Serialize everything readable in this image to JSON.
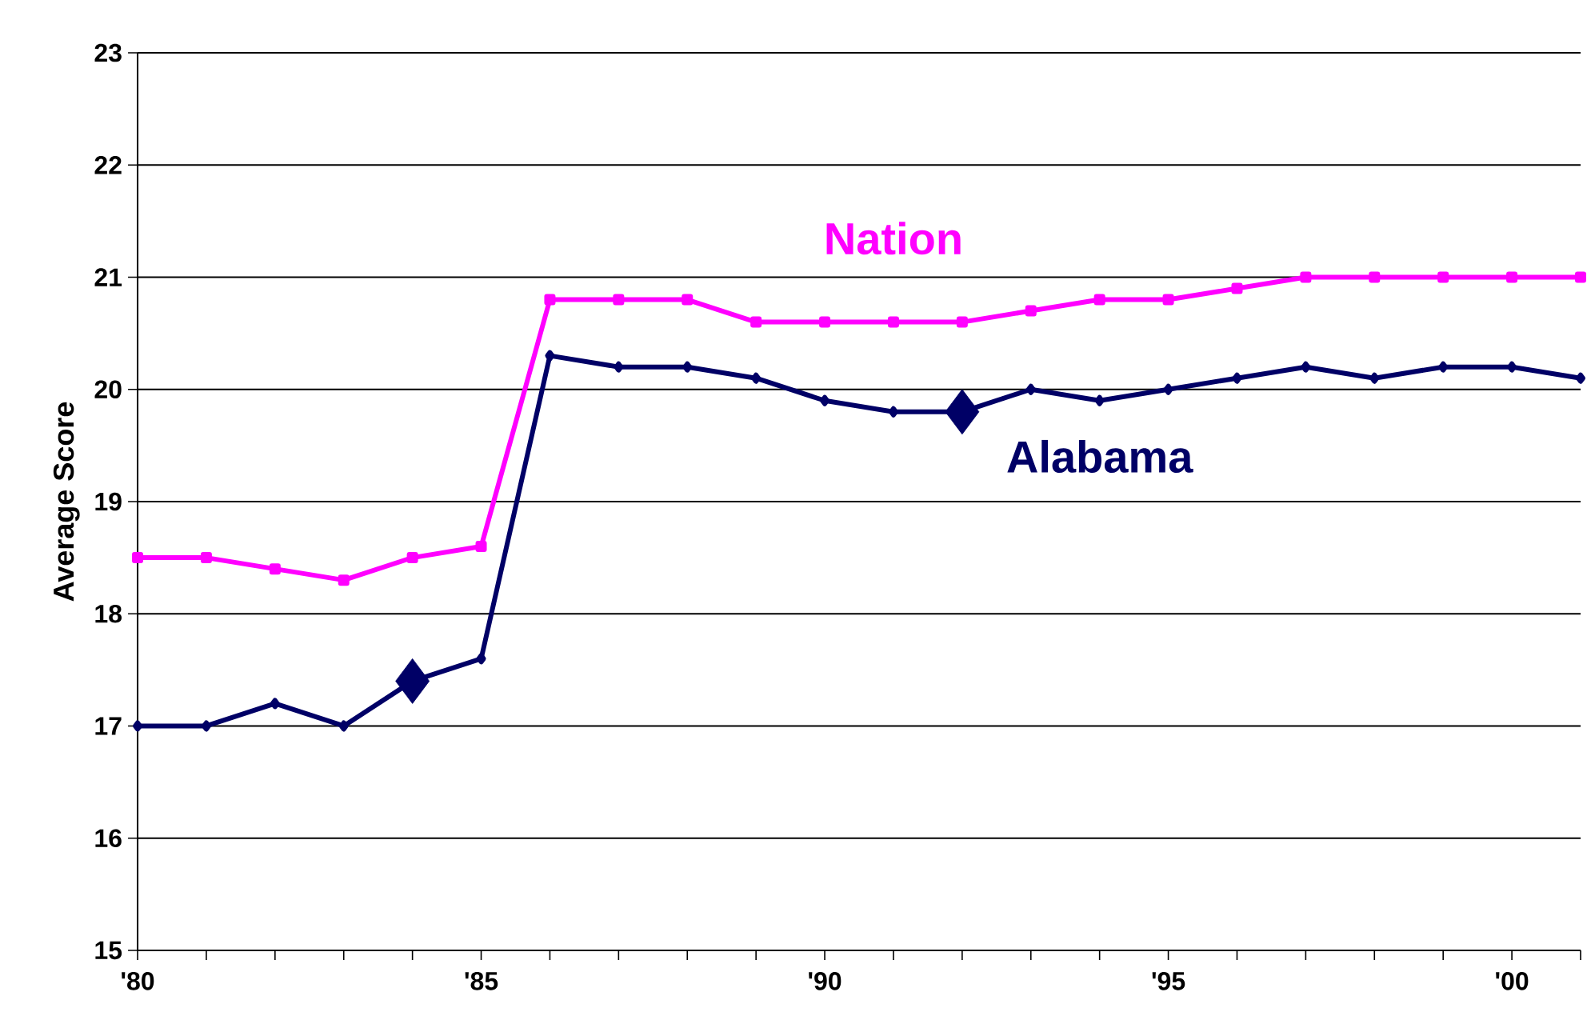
{
  "chart_data": {
    "type": "line",
    "ylabel": "Average Score",
    "x": [
      1980,
      1981,
      1982,
      1983,
      1984,
      1985,
      1986,
      1987,
      1988,
      1989,
      1990,
      1991,
      1992,
      1993,
      1994,
      1995,
      1996,
      1997,
      1998,
      1999,
      2000,
      2001
    ],
    "series": [
      {
        "name": "Nation",
        "color": "#ff00ff",
        "marker": "square",
        "values": [
          18.5,
          18.5,
          18.4,
          18.3,
          18.5,
          18.6,
          20.8,
          20.8,
          20.8,
          20.6,
          20.6,
          20.6,
          20.6,
          20.7,
          20.8,
          20.8,
          20.9,
          21.0,
          21.0,
          21.0,
          21.0,
          21.0
        ]
      },
      {
        "name": "Alabama",
        "color": "#000066",
        "marker": "diamond",
        "values": [
          17.0,
          17.0,
          17.2,
          17.0,
          17.4,
          17.6,
          20.3,
          20.2,
          20.2,
          20.1,
          19.9,
          19.8,
          19.8,
          20.0,
          19.9,
          20.0,
          20.1,
          20.2,
          20.1,
          20.2,
          20.2,
          20.1
        ]
      },
      {
        "type": "scatter",
        "color": "#000066",
        "marker": "diamond",
        "x": [
          1984,
          1992
        ],
        "values": [
          17.4,
          19.8
        ]
      }
    ],
    "xlim": [
      1980,
      2001
    ],
    "xticks": [
      {
        "value": 1980,
        "label": "'80"
      },
      {
        "value": 1981,
        "label": null
      },
      {
        "value": 1982,
        "label": null
      },
      {
        "value": 1983,
        "label": null
      },
      {
        "value": 1984,
        "label": null
      },
      {
        "value": 1985,
        "label": "'85"
      },
      {
        "value": 1986,
        "label": null
      },
      {
        "value": 1987,
        "label": null
      },
      {
        "value": 1988,
        "label": null
      },
      {
        "value": 1989,
        "label": null
      },
      {
        "value": 1990,
        "label": "'90"
      },
      {
        "value": 1991,
        "label": null
      },
      {
        "value": 1992,
        "label": null
      },
      {
        "value": 1993,
        "label": null
      },
      {
        "value": 1994,
        "label": null
      },
      {
        "value": 1995,
        "label": "'95"
      },
      {
        "value": 1996,
        "label": null
      },
      {
        "value": 1997,
        "label": null
      },
      {
        "value": 1998,
        "label": null
      },
      {
        "value": 1999,
        "label": null
      },
      {
        "value": 2000,
        "label": "'00"
      },
      {
        "value": 2001,
        "label": null
      }
    ],
    "ylim": [
      15,
      23
    ],
    "yticks": [
      15,
      16,
      17,
      18,
      19,
      20,
      21,
      22,
      23
    ],
    "grid": "y",
    "legend": false
  }
}
